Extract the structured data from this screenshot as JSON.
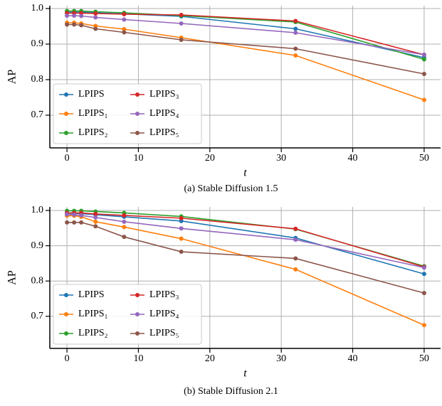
{
  "chart_data": [
    {
      "type": "line",
      "caption": "(a) Stable Diffusion 1.5",
      "xlabel": "t",
      "ylabel": "AP",
      "x": [
        0,
        1,
        2,
        4,
        8,
        16,
        32,
        50
      ],
      "xlim": [
        -2.4,
        52.3
      ],
      "xticks": [
        0,
        10,
        20,
        30,
        40,
        50
      ],
      "ylim": [
        0.608,
        1.008
      ],
      "yticks": [
        0.7,
        0.8,
        0.9,
        {
          "value": 1,
          "label": "1.0"
        }
      ],
      "grid": true,
      "legend": "lower left",
      "series": [
        {
          "name": "LPIPS",
          "color": "#1f77b4",
          "values": [
            0.99,
            0.99,
            0.99,
            0.988,
            0.985,
            0.978,
            0.943,
            0.862
          ]
        },
        {
          "name": "LPIPS₁",
          "color": "#ff7f0e",
          "values": [
            0.96,
            0.96,
            0.958,
            0.951,
            0.942,
            0.918,
            0.868,
            0.743
          ]
        },
        {
          "name": "LPIPS₂",
          "color": "#2ca02c",
          "values": [
            0.993,
            0.993,
            0.993,
            0.991,
            0.988,
            0.98,
            0.962,
            0.857
          ]
        },
        {
          "name": "LPIPS₃",
          "color": "#d62728",
          "values": [
            0.987,
            0.987,
            0.987,
            0.986,
            0.984,
            0.982,
            0.965,
            0.87
          ]
        },
        {
          "name": "LPIPS₄",
          "color": "#9467bd",
          "values": [
            0.98,
            0.98,
            0.979,
            0.975,
            0.969,
            0.958,
            0.932,
            0.87
          ]
        },
        {
          "name": "LPIPS₅",
          "color": "#8c564b",
          "values": [
            0.955,
            0.955,
            0.953,
            0.943,
            0.933,
            0.912,
            0.887,
            0.816
          ]
        }
      ]
    },
    {
      "type": "line",
      "caption": "(b) Stable Diffusion 2.1",
      "xlabel": "t",
      "ylabel": "AP",
      "x": [
        0,
        1,
        2,
        4,
        8,
        16,
        32,
        50
      ],
      "xlim": [
        -2.4,
        52.3
      ],
      "xticks": [
        0,
        10,
        20,
        30,
        40,
        50
      ],
      "ylim": [
        0.609,
        1.01
      ],
      "yticks": [
        0.7,
        0.8,
        0.9,
        {
          "value": 1,
          "label": "1.0"
        }
      ],
      "grid": true,
      "legend": "lower left",
      "series": [
        {
          "name": "LPIPS",
          "color": "#1f77b4",
          "values": [
            0.992,
            0.992,
            0.991,
            0.988,
            0.982,
            0.97,
            0.922,
            0.82
          ]
        },
        {
          "name": "LPIPS₁",
          "color": "#ff7f0e",
          "values": [
            0.985,
            0.985,
            0.982,
            0.968,
            0.953,
            0.92,
            0.833,
            0.675
          ]
        },
        {
          "name": "LPIPS₂",
          "color": "#2ca02c",
          "values": [
            0.999,
            0.999,
            0.999,
            0.997,
            0.993,
            0.983,
            0.947,
            0.842
          ]
        },
        {
          "name": "LPIPS₃",
          "color": "#d62728",
          "values": [
            0.993,
            0.993,
            0.993,
            0.99,
            0.986,
            0.978,
            0.948,
            0.84
          ]
        },
        {
          "name": "LPIPS₄",
          "color": "#9467bd",
          "values": [
            0.989,
            0.988,
            0.986,
            0.98,
            0.968,
            0.949,
            0.917,
            0.838
          ]
        },
        {
          "name": "LPIPS₅",
          "color": "#8c564b",
          "values": [
            0.966,
            0.966,
            0.966,
            0.955,
            0.925,
            0.883,
            0.864,
            0.766
          ]
        }
      ]
    }
  ]
}
